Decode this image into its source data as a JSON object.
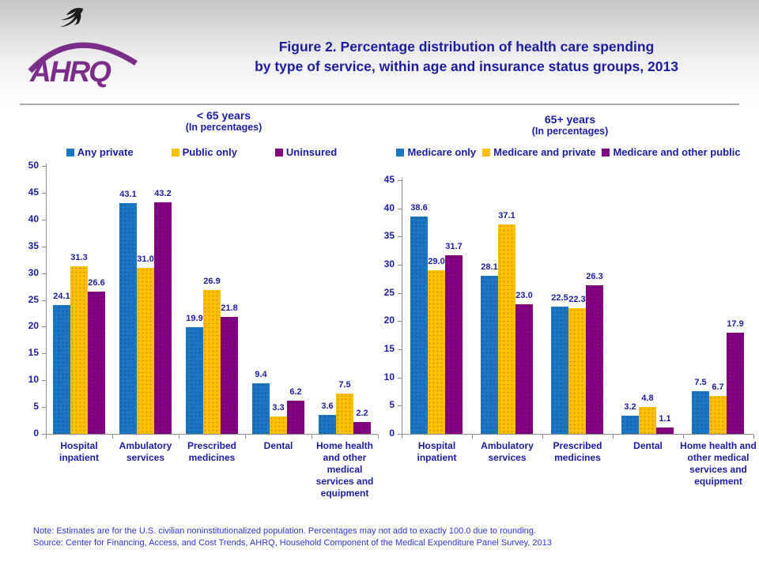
{
  "header": {
    "logo_text": "AHRQ",
    "title_line1": "Figure 2. Percentage distribution of health care spending",
    "title_line2": "by type of service, within age and insurance status groups, 2013"
  },
  "note": {
    "line1": "Note: Estimates are for the U.S. civilian noninstitutionalized population. Percentages may not add to exactly 100.0 due to rounding.",
    "line2": "Source: Center for Financing, Access, and Cost Trends, AHRQ, Household Component of the Medical Expenditure Panel Survey, 2013"
  },
  "colors": {
    "navy_text": "#1C1C9C",
    "note_blue": "#3333CC",
    "logo_purple": "#7A2E8A",
    "axis_gray": "#8C8C8C",
    "bar_blue": "#1B76C4",
    "bar_yellow": "#FFC000",
    "bar_purple": "#830383"
  },
  "chart_data": [
    {
      "type": "bar",
      "title": "< 65 years",
      "subtitle": "(In percentages)",
      "categories": [
        "Hospital inpatient",
        "Ambulatory services",
        "Prescribed medicines",
        "Dental",
        "Home health and other medical services and equipment"
      ],
      "series": [
        {
          "name": "Any private",
          "color": "#1B76C4",
          "values": [
            24.1,
            43.1,
            19.9,
            9.4,
            3.6
          ]
        },
        {
          "name": "Public only",
          "color": "#FFC000",
          "values": [
            31.3,
            31.0,
            26.9,
            3.3,
            7.5
          ]
        },
        {
          "name": "Uninsured",
          "color": "#830383",
          "values": [
            26.6,
            43.2,
            21.8,
            6.2,
            2.2
          ]
        }
      ],
      "ylim": [
        0,
        50
      ],
      "ytick_step": 5,
      "grid": false,
      "legend_position": "top",
      "value_labels": true
    },
    {
      "type": "bar",
      "title": "65+ years",
      "subtitle": "(In percentages)",
      "categories": [
        "Hospital inpatient",
        "Ambulatory services",
        "Prescribed medicines",
        "Dental",
        "Home health and other medical services and equipment"
      ],
      "series": [
        {
          "name": "Medicare only",
          "color": "#1B76C4",
          "values": [
            38.6,
            28.1,
            22.5,
            3.2,
            7.5
          ]
        },
        {
          "name": "Medicare and private",
          "color": "#FFC000",
          "values": [
            29.0,
            37.1,
            22.3,
            4.8,
            6.7
          ]
        },
        {
          "name": "Medicare and other public",
          "color": "#830383",
          "values": [
            31.7,
            23.0,
            26.3,
            1.1,
            17.9
          ]
        }
      ],
      "ylim": [
        0,
        45
      ],
      "ytick_step": 5,
      "grid": false,
      "legend_position": "top",
      "value_labels": true
    }
  ]
}
